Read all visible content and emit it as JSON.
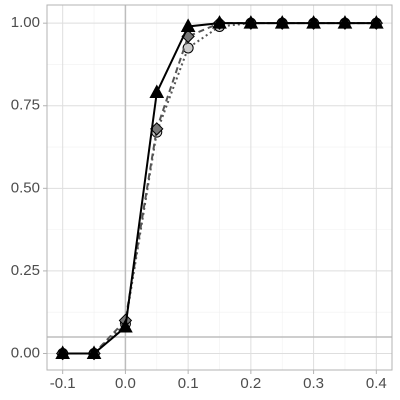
{
  "chart_data": {
    "type": "line",
    "x": [
      -0.1,
      -0.05,
      0,
      0.05,
      0.1,
      0.15,
      0.2,
      0.25,
      0.3,
      0.35,
      0.4
    ],
    "series": [
      {
        "color": "#cccccc",
        "dash": "dotted",
        "marker": "circle",
        "values": [
          0,
          0,
          0.09,
          0.67,
          0.925,
          0.99,
          1,
          1,
          1,
          1,
          1
        ]
      },
      {
        "color": "#777777",
        "dash": "dashed",
        "marker": "diamond",
        "values": [
          0,
          0,
          0.1,
          0.68,
          0.96,
          1,
          1,
          1,
          1,
          1,
          1
        ]
      },
      {
        "color": "#000000",
        "dash": "solid",
        "marker": "triangle",
        "values": [
          0,
          0,
          0.08,
          0.79,
          0.99,
          1,
          1,
          1,
          1,
          1,
          1
        ]
      }
    ],
    "xlim": [
      -0.125,
      0.425
    ],
    "ylim": [
      -0.05,
      1.055
    ],
    "xticks": [
      -0.1,
      {
        "value": 0,
        "label": "0.0"
      },
      0.1,
      0.2,
      0.3,
      0.4
    ],
    "yticks": [
      {
        "value": 0,
        "label": "0.00"
      },
      0.25,
      {
        "value": 0.5,
        "label": "0.50"
      },
      0.75,
      {
        "value": 1,
        "label": "1.00"
      }
    ],
    "xminor": [
      -0.05,
      0.05,
      0.15,
      0.25,
      0.35
    ],
    "yminor": [
      0.125,
      0.375,
      0.625,
      0.875
    ],
    "hline": 0.05,
    "vline": 0,
    "grid": true
  }
}
